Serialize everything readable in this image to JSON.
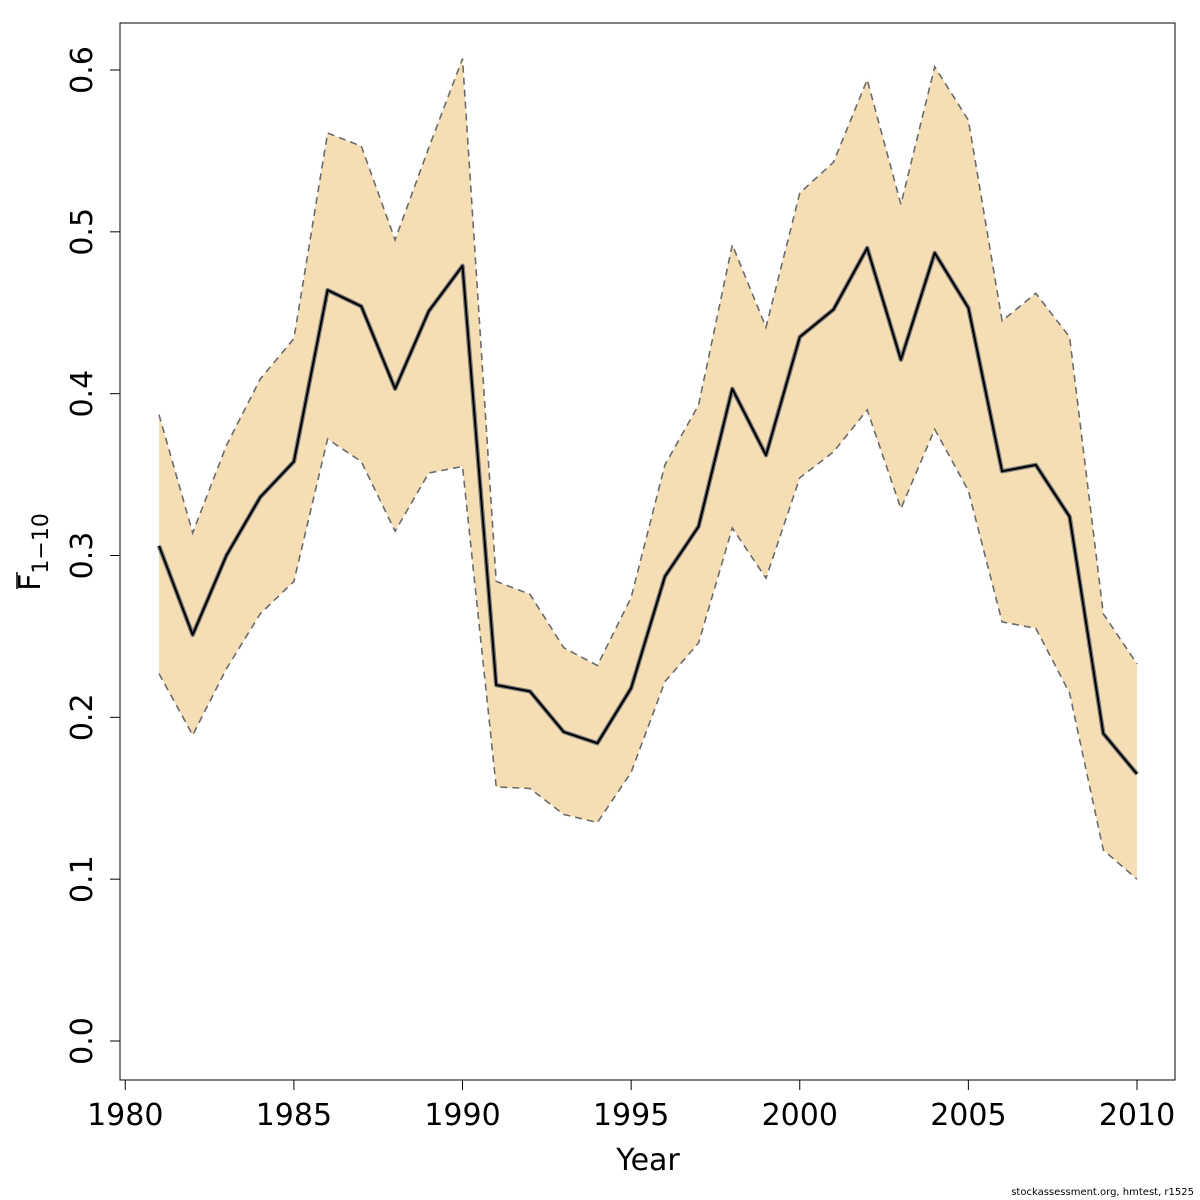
{
  "chart_data": {
    "type": "line",
    "xlabel": "Year",
    "ylabel_main": "F",
    "ylabel_sub": "1−10",
    "xlim": [
      1981,
      2010
    ],
    "ylim": [
      0,
      0.6
    ],
    "x_ticks": [
      "1980",
      "1985",
      "1990",
      "1995",
      "2000",
      "2005",
      "2010"
    ],
    "y_ticks": [
      "0.0",
      "0.1",
      "0.2",
      "0.3",
      "0.4",
      "0.5",
      "0.6"
    ],
    "x": [
      1981,
      1982,
      1983,
      1984,
      1985,
      1986,
      1987,
      1988,
      1989,
      1990,
      1991,
      1992,
      1993,
      1994,
      1995,
      1996,
      1997,
      1998,
      1999,
      2000,
      2001,
      2002,
      2003,
      2004,
      2005,
      2006,
      2007,
      2008,
      2009,
      2010
    ],
    "series": [
      {
        "role": "estimate",
        "values": [
          0.306,
          0.251,
          0.3,
          0.336,
          0.358,
          0.464,
          0.454,
          0.403,
          0.451,
          0.479,
          0.22,
          0.216,
          0.191,
          0.184,
          0.218,
          0.287,
          0.318,
          0.403,
          0.362,
          0.435,
          0.452,
          0.49,
          0.421,
          0.487,
          0.453,
          0.352,
          0.356,
          0.324,
          0.19,
          0.165
        ]
      },
      {
        "role": "upper",
        "values": [
          0.387,
          0.314,
          0.368,
          0.409,
          0.434,
          0.561,
          0.553,
          0.495,
          0.552,
          0.607,
          0.284,
          0.276,
          0.243,
          0.232,
          0.274,
          0.356,
          0.393,
          0.492,
          0.441,
          0.524,
          0.543,
          0.594,
          0.517,
          0.602,
          0.569,
          0.445,
          0.462,
          0.435,
          0.264,
          0.233
        ]
      },
      {
        "role": "lower",
        "values": [
          0.227,
          0.189,
          0.23,
          0.264,
          0.284,
          0.372,
          0.358,
          0.315,
          0.351,
          0.355,
          0.157,
          0.156,
          0.14,
          0.135,
          0.166,
          0.222,
          0.246,
          0.317,
          0.286,
          0.348,
          0.364,
          0.39,
          0.329,
          0.378,
          0.34,
          0.259,
          0.255,
          0.215,
          0.118,
          0.1
        ]
      }
    ],
    "colors": {
      "band": "#f5deb3",
      "estimate": "#000000",
      "estimate_shadow": "#7a7a7a",
      "ci": "#6b6b6b",
      "axis": "#000000"
    }
  },
  "footer": "stockassessment.org, hmtest, r1525"
}
